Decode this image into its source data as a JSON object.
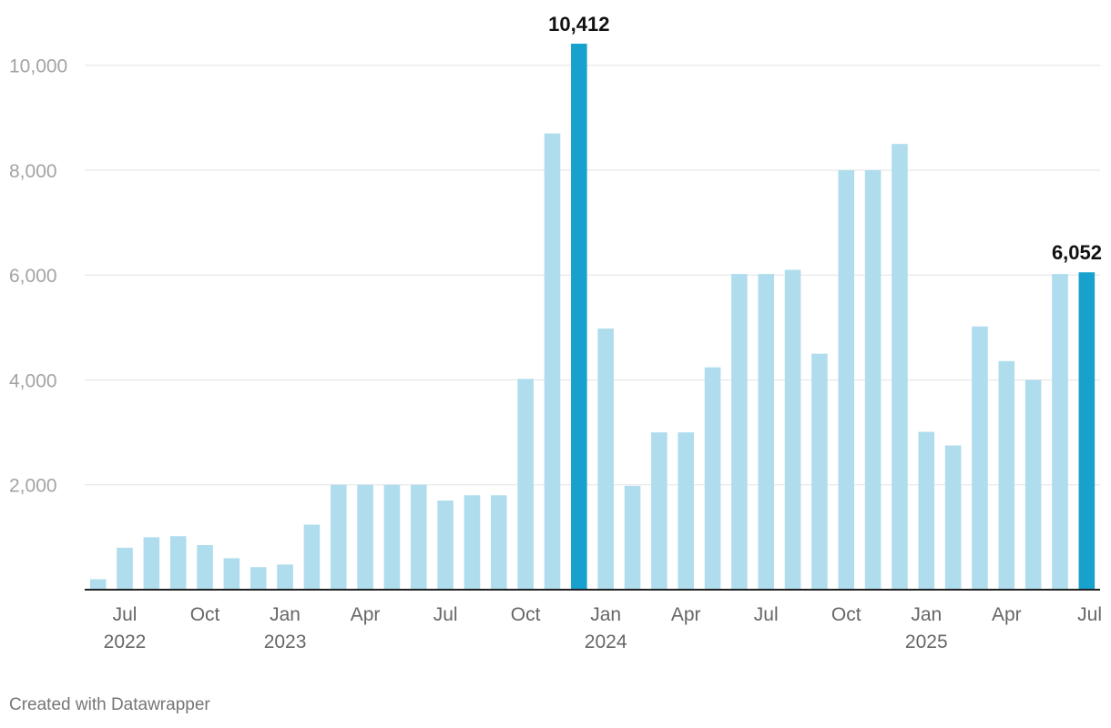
{
  "chart_data": {
    "type": "bar",
    "title": "",
    "xlabel": "",
    "ylabel": "",
    "ylim": [
      0,
      10412
    ],
    "yticks": [
      2000,
      4000,
      6000,
      8000,
      10000
    ],
    "ytick_labels": [
      "2,000",
      "4,000",
      "6,000",
      "8,000",
      "10,000"
    ],
    "grid": true,
    "categories": [
      "2022-06",
      "2022-07",
      "2022-08",
      "2022-09",
      "2022-10",
      "2022-11",
      "2022-12",
      "2023-01",
      "2023-02",
      "2023-03",
      "2023-04",
      "2023-05",
      "2023-06",
      "2023-07",
      "2023-08",
      "2023-09",
      "2023-10",
      "2023-11",
      "2023-12",
      "2024-01",
      "2024-02",
      "2024-03",
      "2024-04",
      "2024-05",
      "2024-06",
      "2024-07",
      "2024-08",
      "2024-09",
      "2024-10",
      "2024-11",
      "2024-12",
      "2025-01",
      "2025-02",
      "2025-03",
      "2025-04",
      "2025-05",
      "2025-06",
      "2025-07"
    ],
    "values": [
      200,
      800,
      1000,
      1020,
      850,
      600,
      430,
      480,
      1240,
      2000,
      2000,
      2000,
      2000,
      1700,
      1800,
      1800,
      4020,
      8700,
      10412,
      4980,
      1980,
      3000,
      3000,
      4240,
      6020,
      6020,
      6100,
      4500,
      8000,
      8000,
      8500,
      3010,
      2750,
      5020,
      4360,
      4000,
      6020,
      6052
    ],
    "highlighted": [
      18,
      37
    ],
    "data_labels": [
      {
        "index": 18,
        "text": "10,412"
      },
      {
        "index": 37,
        "text": "6,052"
      }
    ],
    "x_tick_labels": [
      {
        "index": 1,
        "month": "Jul",
        "year": "2022"
      },
      {
        "index": 4,
        "month": "Oct",
        "year": ""
      },
      {
        "index": 7,
        "month": "Jan",
        "year": "2023"
      },
      {
        "index": 10,
        "month": "Apr",
        "year": ""
      },
      {
        "index": 13,
        "month": "Jul",
        "year": ""
      },
      {
        "index": 16,
        "month": "Oct",
        "year": ""
      },
      {
        "index": 19,
        "month": "Jan",
        "year": "2024"
      },
      {
        "index": 22,
        "month": "Apr",
        "year": ""
      },
      {
        "index": 25,
        "month": "Jul",
        "year": ""
      },
      {
        "index": 28,
        "month": "Oct",
        "year": ""
      },
      {
        "index": 31,
        "month": "Jan",
        "year": "2025"
      },
      {
        "index": 34,
        "month": "Apr",
        "year": ""
      },
      {
        "index": 37,
        "month": "Jul",
        "year": ""
      }
    ],
    "colors": {
      "bar": "#b0dded",
      "highlight": "#18a1cd"
    }
  },
  "credit": "Created with Datawrapper"
}
